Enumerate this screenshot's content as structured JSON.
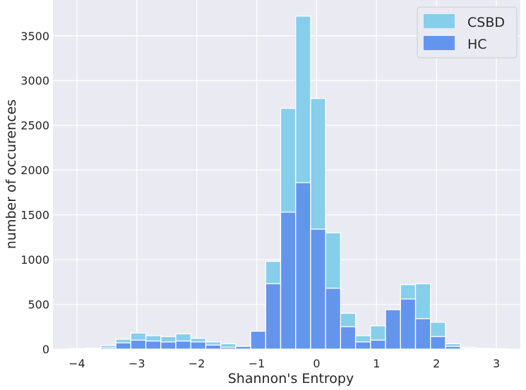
{
  "chart_data": {
    "type": "bar",
    "subtype": "overlapping-histogram",
    "title": "",
    "xlabel": "Shannon's Entropy",
    "ylabel": "number of occurences",
    "xlim": [
      -4.4,
      3.4
    ],
    "ylim": [
      0,
      3900
    ],
    "xticks": [
      -4,
      -3,
      -2,
      -1,
      0,
      1,
      2,
      3
    ],
    "xtick_labels": [
      "−4",
      "−3",
      "−2",
      "−1",
      "0",
      "1",
      "2",
      "3"
    ],
    "yticks": [
      0,
      500,
      1000,
      1500,
      2000,
      2500,
      3000,
      3500
    ],
    "ytick_labels": [
      "0",
      "500",
      "1000",
      "1500",
      "2000",
      "2500",
      "3000",
      "3500"
    ],
    "grid": true,
    "legend_position": "top-right",
    "bin_width": 0.25,
    "series": [
      {
        "name": "CSBD",
        "color": "#87ceeb",
        "bins": [
          [
            -4.1,
            5
          ],
          [
            -3.85,
            10
          ],
          [
            -3.6,
            40
          ],
          [
            -3.35,
            110
          ],
          [
            -3.1,
            180
          ],
          [
            -2.85,
            150
          ],
          [
            -2.6,
            140
          ],
          [
            -2.35,
            170
          ],
          [
            -2.1,
            120
          ],
          [
            -1.85,
            80
          ],
          [
            -1.6,
            60
          ],
          [
            -1.35,
            30
          ],
          [
            -1.1,
            190
          ],
          [
            -0.85,
            980
          ],
          [
            -0.6,
            2690
          ],
          [
            -0.35,
            3720
          ],
          [
            -0.1,
            2800
          ],
          [
            0.15,
            1300
          ],
          [
            0.4,
            400
          ],
          [
            0.65,
            150
          ],
          [
            0.9,
            260
          ],
          [
            1.15,
            420
          ],
          [
            1.4,
            720
          ],
          [
            1.65,
            730
          ],
          [
            1.9,
            300
          ],
          [
            2.15,
            60
          ],
          [
            2.4,
            20
          ],
          [
            2.65,
            8
          ],
          [
            2.9,
            5
          ]
        ]
      },
      {
        "name": "HC",
        "color": "#6495ed",
        "bins": [
          [
            -3.6,
            15
          ],
          [
            -3.35,
            70
          ],
          [
            -3.1,
            100
          ],
          [
            -2.85,
            90
          ],
          [
            -2.6,
            80
          ],
          [
            -2.35,
            90
          ],
          [
            -2.1,
            80
          ],
          [
            -1.85,
            45
          ],
          [
            -1.6,
            20
          ],
          [
            -1.35,
            30
          ],
          [
            -1.1,
            200
          ],
          [
            -0.85,
            730
          ],
          [
            -0.6,
            1530
          ],
          [
            -0.35,
            1860
          ],
          [
            -0.1,
            1340
          ],
          [
            0.15,
            680
          ],
          [
            0.4,
            250
          ],
          [
            0.65,
            80
          ],
          [
            0.9,
            100
          ],
          [
            1.15,
            440
          ],
          [
            1.4,
            560
          ],
          [
            1.65,
            340
          ],
          [
            1.9,
            140
          ],
          [
            2.15,
            30
          ],
          [
            2.4,
            8
          ]
        ]
      }
    ]
  }
}
